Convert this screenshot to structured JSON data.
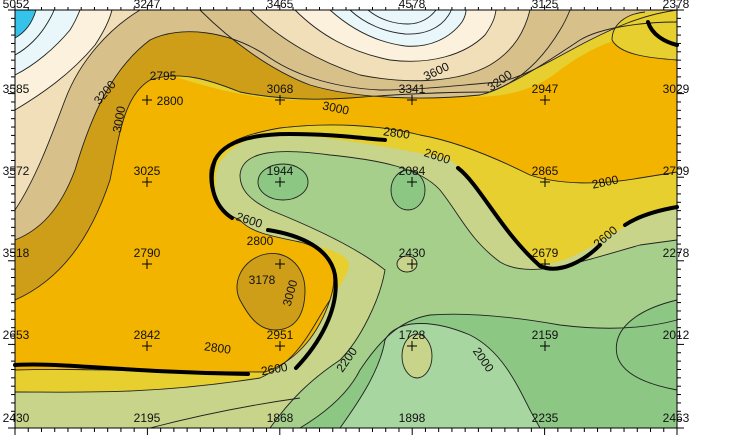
{
  "stations": [
    {
      "id": "s-r0c0",
      "value": "5052",
      "row": 0,
      "col": 0
    },
    {
      "id": "s-r0c1",
      "value": "3247",
      "row": 0,
      "col": 1
    },
    {
      "id": "s-r0c2",
      "value": "3465",
      "row": 0,
      "col": 2
    },
    {
      "id": "s-r0c3",
      "value": "4578",
      "row": 0,
      "col": 3
    },
    {
      "id": "s-r0c4",
      "value": "3125",
      "row": 0,
      "col": 4
    },
    {
      "id": "s-r0c5",
      "value": "2378",
      "row": 0,
      "col": 5
    },
    {
      "id": "s-r1c0",
      "value": "3585",
      "row": 1,
      "col": 0
    },
    {
      "id": "s-r1c1",
      "value": "2795",
      "row": 1,
      "col": 1,
      "offset": "above-right"
    },
    {
      "id": "s-r1c2",
      "value": "3068",
      "row": 1,
      "col": 2
    },
    {
      "id": "s-r1c3",
      "value": "3341",
      "row": 1,
      "col": 3
    },
    {
      "id": "s-r1c4",
      "value": "2947",
      "row": 1,
      "col": 4
    },
    {
      "id": "s-r1c5",
      "value": "3029",
      "row": 1,
      "col": 5
    },
    {
      "id": "s-r2c0",
      "value": "3572",
      "row": 2,
      "col": 0
    },
    {
      "id": "s-r2c1",
      "value": "3025",
      "row": 2,
      "col": 1
    },
    {
      "id": "s-r2c2",
      "value": "1944",
      "row": 2,
      "col": 2
    },
    {
      "id": "s-r2c3",
      "value": "2084",
      "row": 2,
      "col": 3
    },
    {
      "id": "s-r2c4",
      "value": "2865",
      "row": 2,
      "col": 4
    },
    {
      "id": "s-r2c5",
      "value": "2709",
      "row": 2,
      "col": 5
    },
    {
      "id": "s-r3c0",
      "value": "3518",
      "row": 3,
      "col": 0
    },
    {
      "id": "s-r3c1",
      "value": "2790",
      "row": 3,
      "col": 1
    },
    {
      "id": "s-r3c2",
      "value": "3178",
      "row": 3,
      "col": 2,
      "offset": "below-left"
    },
    {
      "id": "s-r3c3",
      "value": "2430",
      "row": 3,
      "col": 3
    },
    {
      "id": "s-r3c4",
      "value": "2679",
      "row": 3,
      "col": 4
    },
    {
      "id": "s-r3c5",
      "value": "2278",
      "row": 3,
      "col": 5
    },
    {
      "id": "s-r4c0",
      "value": "2653",
      "row": 4,
      "col": 0
    },
    {
      "id": "s-r4c1",
      "value": "2842",
      "row": 4,
      "col": 1
    },
    {
      "id": "s-r4c2",
      "value": "2951",
      "row": 4,
      "col": 2
    },
    {
      "id": "s-r4c3",
      "value": "1728",
      "row": 4,
      "col": 3
    },
    {
      "id": "s-r4c4",
      "value": "2159",
      "row": 4,
      "col": 4
    },
    {
      "id": "s-r4c5",
      "value": "2012",
      "row": 4,
      "col": 5
    },
    {
      "id": "s-r5c0",
      "value": "2430",
      "row": 5,
      "col": 0
    },
    {
      "id": "s-r5c1",
      "value": "2195",
      "row": 5,
      "col": 1
    },
    {
      "id": "s-r5c2",
      "value": "1868",
      "row": 5,
      "col": 2
    },
    {
      "id": "s-r5c3",
      "value": "1898",
      "row": 5,
      "col": 3
    },
    {
      "id": "s-r5c4",
      "value": "2235",
      "row": 5,
      "col": 4
    },
    {
      "id": "s-r5c5",
      "value": "2463",
      "row": 5,
      "col": 5
    }
  ],
  "contour_labels": [
    {
      "id": "cl-3200-a",
      "text": "3200"
    },
    {
      "id": "cl-3000-a",
      "text": "3000"
    },
    {
      "id": "cl-2800-a",
      "text": "2800"
    },
    {
      "id": "cl-3000-b",
      "text": "3000"
    },
    {
      "id": "cl-3200-b",
      "text": "3200"
    },
    {
      "id": "cl-3600",
      "text": "3600"
    },
    {
      "id": "cl-2800-b",
      "text": "2800"
    },
    {
      "id": "cl-2600-a",
      "text": "2600"
    },
    {
      "id": "cl-2800-c",
      "text": "2800"
    },
    {
      "id": "cl-2600-b",
      "text": "2600"
    },
    {
      "id": "cl-2600-c",
      "text": "2600"
    },
    {
      "id": "cl-2800-d",
      "text": "2800"
    },
    {
      "id": "cl-3000-c",
      "text": "3000"
    },
    {
      "id": "cl-2800-e",
      "text": "2800"
    },
    {
      "id": "cl-2600-d",
      "text": "2600"
    },
    {
      "id": "cl-2200",
      "text": "2200"
    },
    {
      "id": "cl-2000",
      "text": "2000"
    }
  ],
  "colors": {
    "band_1800": "#a8d6a0",
    "band_2000": "#8cc784",
    "band_2200": "#a5cf8a",
    "band_2400": "#c7d48a",
    "band_2600": "#e6cf2e",
    "band_2800": "#f3b400",
    "band_3000": "#cf9e19",
    "band_3200": "#d8c08a",
    "band_3400": "#f0dfb8",
    "band_3600": "#fbf1dc",
    "band_high": "#e9f7fa",
    "band_peak": "#36c3ea",
    "bold_contour": "#000000"
  }
}
